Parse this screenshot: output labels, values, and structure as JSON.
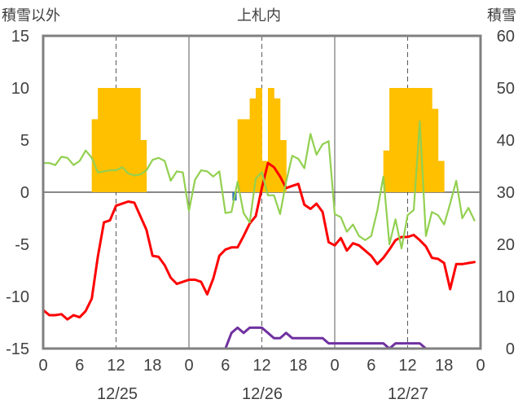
{
  "chart_data": {
    "type": "bar+line",
    "title": "上札内",
    "y_left_label": "積雪以外",
    "y_right_label": "積雪",
    "y_left_lim": [
      -15,
      15
    ],
    "y_left_ticks": [
      15,
      10,
      5,
      0,
      -5,
      -10,
      -15
    ],
    "y_right_lim": [
      0,
      60
    ],
    "y_right_ticks": [
      60,
      50,
      40,
      30,
      20,
      10,
      0
    ],
    "x_hour_lim": [
      0,
      72
    ],
    "x_tick_hours": [
      0,
      6,
      12,
      18,
      24,
      30,
      36,
      42,
      48,
      54,
      60,
      66,
      72
    ],
    "x_tick_labels": [
      "0",
      "6",
      "12",
      "18",
      "0",
      "6",
      "12",
      "18",
      "0",
      "6",
      "12",
      "18",
      "0"
    ],
    "date_labels": [
      "12/25",
      "12/26",
      "12/27"
    ],
    "colors": {
      "snowfall": "#ffc000",
      "precip": "#2e75b6",
      "temperature": "#ff0000",
      "green_series": "#92d050",
      "snow_depth": "#7030a0",
      "grid": "#595959",
      "zero_line": "#404040",
      "frame": "#808080"
    },
    "series": [
      {
        "key": "snowfall",
        "type": "bar",
        "axis": "left",
        "x_hours": [
          8,
          9,
          10,
          11,
          12,
          13,
          14,
          15,
          16,
          32,
          33,
          34,
          35,
          36,
          37,
          38,
          39,
          56,
          57,
          58,
          59,
          60,
          61,
          62,
          63,
          64,
          65
        ],
        "values": [
          7,
          10,
          10,
          10,
          10,
          10,
          10,
          10,
          5,
          7,
          7,
          9,
          10,
          3,
          10,
          9,
          5,
          4,
          10,
          10,
          10,
          10,
          10,
          10,
          10,
          8,
          3
        ]
      },
      {
        "key": "precip",
        "type": "bar",
        "axis": "left",
        "x_hours": [
          31
        ],
        "values": [
          -0.8
        ]
      },
      {
        "key": "temperature",
        "type": "line",
        "axis": "left",
        "x_hours": [
          0,
          1,
          2,
          3,
          4,
          5,
          6,
          7,
          8,
          9,
          10,
          11,
          12,
          13,
          14,
          15,
          16,
          17,
          18,
          19,
          20,
          21,
          22,
          23,
          24,
          25,
          26,
          27,
          28,
          29,
          30,
          31,
          32,
          33,
          34,
          35,
          36,
          37,
          38,
          39,
          40,
          41,
          42,
          43,
          44,
          45,
          46,
          47,
          48,
          49,
          50,
          51,
          52,
          53,
          54,
          55,
          56,
          57,
          58,
          59,
          60,
          61,
          62,
          63,
          64,
          65,
          66,
          67,
          68,
          69,
          70,
          71
        ],
        "values": [
          -11.3,
          -11.8,
          -11.8,
          -11.7,
          -12.2,
          -11.8,
          -12.0,
          -11.4,
          -10.2,
          -6.2,
          -2.9,
          -2.7,
          -1.3,
          -1.1,
          -0.9,
          -1.0,
          -2.3,
          -3.6,
          -6.1,
          -6.2,
          -7.0,
          -8.2,
          -8.8,
          -8.6,
          -8.4,
          -8.4,
          -8.6,
          -9.8,
          -8.3,
          -6.1,
          -5.5,
          -5.3,
          -5.3,
          -4.2,
          -3.0,
          -2.3,
          0.4,
          2.8,
          2.4,
          1.5,
          0.4,
          0.6,
          0.8,
          -1.2,
          -1.6,
          -1.1,
          -1.9,
          -4.8,
          -5.1,
          -4.4,
          -5.6,
          -4.9,
          -5.1,
          -5.6,
          -6.1,
          -6.9,
          -6.3,
          -5.5,
          -4.6,
          -4.3,
          -4.3,
          -4.1,
          -4.6,
          -5.2,
          -6.3,
          -6.4,
          -6.8,
          -9.3,
          -6.9,
          -6.9,
          -6.8,
          -6.7
        ]
      },
      {
        "key": "green_series",
        "type": "line",
        "axis": "left",
        "x_hours": [
          0,
          1,
          2,
          3,
          4,
          5,
          6,
          7,
          8,
          9,
          10,
          11,
          12,
          13,
          14,
          15,
          16,
          17,
          18,
          19,
          20,
          21,
          22,
          23,
          24,
          25,
          26,
          27,
          28,
          29,
          30,
          31,
          32,
          33,
          34,
          35,
          36,
          37,
          38,
          39,
          40,
          41,
          42,
          43,
          44,
          45,
          46,
          47,
          48,
          49,
          50,
          51,
          52,
          53,
          54,
          55,
          56,
          57,
          58,
          59,
          60,
          61,
          62,
          63,
          64,
          65,
          66,
          67,
          68,
          69,
          70,
          71
        ],
        "values": [
          2.8,
          2.8,
          2.6,
          3.4,
          3.3,
          2.6,
          3.0,
          4.0,
          3.3,
          1.9,
          2.0,
          2.1,
          2.1,
          2.4,
          1.8,
          1.6,
          1.7,
          2.1,
          3.1,
          3.3,
          3.0,
          1.1,
          2.0,
          1.9,
          -1.8,
          1.2,
          2.1,
          2.0,
          1.5,
          2.0,
          -2.0,
          -1.9,
          1.0,
          -2.0,
          -2.9,
          1.3,
          1.9,
          -0.3,
          -0.3,
          -2.1,
          1.0,
          3.5,
          3.2,
          2.3,
          5.6,
          3.6,
          4.6,
          4.9,
          -2.1,
          -2.4,
          -3.8,
          -3.1,
          -4.2,
          -4.6,
          -4.2,
          -1.8,
          1.5,
          -5.0,
          -2.6,
          -5.4,
          -2.2,
          -1.7,
          6.8,
          -4.2,
          -1.9,
          -2.2,
          -3.1,
          -1.1,
          1.1,
          -2.5,
          -1.5,
          -2.7
        ]
      },
      {
        "key": "snow_depth",
        "type": "line",
        "axis": "right",
        "x_hours": [
          0,
          1,
          2,
          3,
          4,
          5,
          6,
          7,
          8,
          9,
          10,
          11,
          12,
          13,
          14,
          15,
          16,
          17,
          18,
          19,
          20,
          21,
          22,
          23,
          24,
          25,
          26,
          27,
          28,
          29,
          30,
          31,
          32,
          33,
          34,
          35,
          36,
          37,
          38,
          39,
          40,
          41,
          42,
          43,
          44,
          45,
          46,
          47,
          48,
          49,
          50,
          51,
          52,
          53,
          54,
          55,
          56,
          57,
          58,
          59,
          60,
          61,
          62,
          63,
          64,
          65,
          66,
          67,
          68,
          69,
          70,
          71
        ],
        "values": [
          0,
          0,
          0,
          0,
          0,
          0,
          0,
          0,
          0,
          0,
          0,
          0,
          0,
          0,
          0,
          0,
          0,
          0,
          0,
          0,
          0,
          0,
          0,
          0,
          0,
          0,
          0,
          0,
          0,
          0,
          0,
          3,
          4,
          3,
          4,
          4,
          4,
          3,
          2,
          2,
          3,
          2,
          2,
          2,
          2,
          2,
          2,
          1,
          1,
          1,
          1,
          1,
          1,
          1,
          1,
          1,
          1,
          0,
          1,
          1,
          1,
          1,
          1,
          0,
          0,
          0,
          0,
          0,
          0,
          0,
          0,
          0
        ]
      }
    ]
  }
}
